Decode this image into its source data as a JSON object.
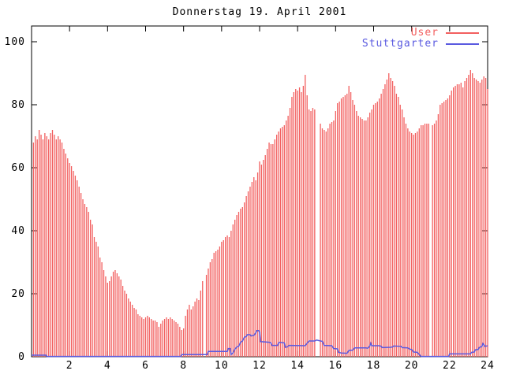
{
  "title": "Donnerstag 19. April 2001",
  "colors": {
    "user": "#f25f5f",
    "stuttgarter": "#5a5ae0",
    "border": "#000000",
    "background": "#ffffff"
  },
  "legend": [
    {
      "label": "User",
      "series": "user"
    },
    {
      "label": "Stuttgarter",
      "series": "stuttgarter"
    }
  ],
  "chart_data": {
    "type": "bar",
    "title": "Donnerstag 19. April 2001",
    "xlabel": "",
    "ylabel": "",
    "xlim": [
      0,
      24
    ],
    "ylim": [
      0,
      105
    ],
    "x_ticks": [
      2,
      4,
      6,
      8,
      10,
      12,
      14,
      16,
      18,
      20,
      22,
      24
    ],
    "y_ticks": [
      0,
      20,
      40,
      60,
      80,
      100
    ],
    "grid": false,
    "legend_position": "top-right-inside",
    "series": [
      {
        "name": "User",
        "style": "impulses",
        "color_key": "user",
        "x_start": 0.1,
        "x_step": 0.1,
        "values": [
          68,
          70,
          69,
          72,
          70.5,
          69,
          71,
          70,
          69,
          71,
          72,
          70.5,
          69,
          70,
          69,
          68,
          66,
          64.5,
          63,
          61.5,
          60.5,
          59,
          57.5,
          56,
          54,
          52,
          50,
          48.5,
          47.5,
          46,
          43.5,
          42,
          38,
          36.5,
          35,
          31.5,
          30,
          27.5,
          25.5,
          23.5,
          24,
          25.5,
          27,
          27.5,
          26.5,
          25.5,
          24.5,
          22.5,
          21,
          20,
          18.5,
          17.5,
          16.5,
          15.5,
          15,
          13.5,
          13,
          12.5,
          12,
          12.5,
          13,
          12.5,
          12,
          11.5,
          11.5,
          11,
          9.5,
          10.5,
          11.5,
          12,
          12.5,
          12,
          12.5,
          12,
          11.5,
          11,
          10.5,
          9.5,
          8.5,
          9,
          13,
          15,
          16.5,
          15,
          16,
          17.5,
          18.5,
          18,
          21,
          24,
          null,
          26,
          28,
          30,
          31,
          33,
          33.5,
          34,
          35,
          36.5,
          37,
          38,
          38.5,
          38,
          40,
          42,
          43.5,
          45,
          46,
          47,
          47.5,
          49,
          51,
          52.5,
          54,
          55.5,
          57,
          56,
          58.5,
          62,
          61,
          62.5,
          64,
          66,
          68,
          67.5,
          67.5,
          69,
          70.5,
          71.5,
          72.5,
          73,
          73.5,
          75,
          76.5,
          79,
          82.5,
          84,
          85,
          84.5,
          85.5,
          84,
          86,
          89.5,
          83,
          78.5,
          78,
          79,
          78.5,
          null,
          null,
          74,
          72.5,
          72,
          71.5,
          72.5,
          74,
          74.5,
          75,
          78,
          80.5,
          81,
          82,
          82.5,
          83,
          83.5,
          86,
          84,
          81.5,
          80,
          78,
          76.5,
          76,
          75.5,
          75,
          75,
          76,
          77.5,
          78.5,
          80,
          80.5,
          81,
          82,
          83.5,
          85,
          86.5,
          88,
          90,
          88.5,
          87.5,
          86,
          83.5,
          82.5,
          80,
          78.5,
          76,
          74,
          72.5,
          71.5,
          71,
          70.5,
          71,
          71.5,
          72.5,
          73.5,
          73.5,
          74,
          74,
          74,
          null,
          73.5,
          74,
          75,
          77,
          80,
          80.5,
          81,
          81.5,
          82,
          83,
          84.5,
          85.5,
          86,
          86.5,
          86.5,
          87,
          85.5,
          87.5,
          88.5,
          89.5,
          91,
          90,
          88.5,
          88,
          87.5,
          87,
          88,
          89,
          88.5,
          85
        ]
      },
      {
        "name": "Stuttgarter",
        "style": "lines",
        "color_key": "stuttgarter",
        "points": [
          [
            0,
            0.5
          ],
          [
            0.75,
            0.5
          ],
          [
            0.8,
            0.1
          ],
          [
            7.85,
            0.1
          ],
          [
            7.9,
            0.7
          ],
          [
            9.25,
            0.7
          ],
          [
            9.3,
            1.7
          ],
          [
            10.3,
            1.7
          ],
          [
            10.35,
            2.6
          ],
          [
            10.45,
            2.6
          ],
          [
            10.5,
            0.7
          ],
          [
            10.6,
            1.2
          ],
          [
            10.7,
            2.4
          ],
          [
            10.8,
            3.1
          ],
          [
            10.9,
            3.3
          ],
          [
            11.0,
            4.6
          ],
          [
            11.1,
            5.0
          ],
          [
            11.2,
            6.2
          ],
          [
            11.3,
            6.4
          ],
          [
            11.35,
            7.0
          ],
          [
            11.5,
            7.0
          ],
          [
            11.55,
            6.6
          ],
          [
            11.7,
            6.8
          ],
          [
            11.8,
            7.6
          ],
          [
            11.85,
            8.3
          ],
          [
            11.95,
            8.3
          ],
          [
            12.0,
            7.8
          ],
          [
            12.05,
            4.8
          ],
          [
            12.5,
            4.6
          ],
          [
            12.6,
            4.4
          ],
          [
            12.65,
            3.6
          ],
          [
            12.95,
            3.6
          ],
          [
            13.0,
            4.4
          ],
          [
            13.05,
            4.6
          ],
          [
            13.3,
            4.4
          ],
          [
            13.35,
            3.0
          ],
          [
            13.45,
            3.1
          ],
          [
            13.55,
            3.6
          ],
          [
            14.4,
            3.5
          ],
          [
            14.5,
            4.3
          ],
          [
            14.6,
            5.0
          ],
          [
            14.9,
            5.0
          ],
          [
            15.0,
            5.3
          ],
          [
            15.2,
            5.0
          ],
          [
            15.3,
            4.9
          ],
          [
            15.4,
            3.6
          ],
          [
            15.8,
            3.5
          ],
          [
            15.9,
            2.6
          ],
          [
            16.1,
            2.5
          ],
          [
            16.15,
            1.4
          ],
          [
            16.3,
            1.2
          ],
          [
            16.6,
            1.1
          ],
          [
            16.7,
            2.0
          ],
          [
            16.9,
            2.1
          ],
          [
            17.0,
            2.8
          ],
          [
            17.6,
            2.8
          ],
          [
            17.7,
            2.7
          ],
          [
            17.8,
            3.4
          ],
          [
            17.85,
            4.3
          ],
          [
            17.9,
            3.5
          ],
          [
            18.3,
            3.5
          ],
          [
            18.4,
            3.3
          ],
          [
            18.45,
            2.9
          ],
          [
            18.9,
            3.0
          ],
          [
            19.0,
            3.1
          ],
          [
            19.05,
            3.4
          ],
          [
            19.45,
            3.3
          ],
          [
            19.5,
            2.9
          ],
          [
            19.8,
            2.8
          ],
          [
            19.9,
            2.4
          ],
          [
            20.0,
            2.3
          ],
          [
            20.1,
            1.5
          ],
          [
            20.3,
            1.4
          ],
          [
            20.4,
            0.7
          ],
          [
            20.5,
            0.1
          ],
          [
            21.95,
            0.1
          ],
          [
            22.0,
            0.9
          ],
          [
            23.1,
            0.9
          ],
          [
            23.15,
            1.4
          ],
          [
            23.3,
            1.5
          ],
          [
            23.35,
            2.2
          ],
          [
            23.5,
            2.3
          ],
          [
            23.55,
            2.9
          ],
          [
            23.6,
            3.0
          ],
          [
            23.7,
            3.3
          ],
          [
            23.75,
            4.2
          ],
          [
            23.8,
            3.9
          ],
          [
            23.85,
            3.3
          ],
          [
            23.95,
            3.4
          ],
          [
            24.0,
            3.5
          ]
        ]
      }
    ]
  }
}
